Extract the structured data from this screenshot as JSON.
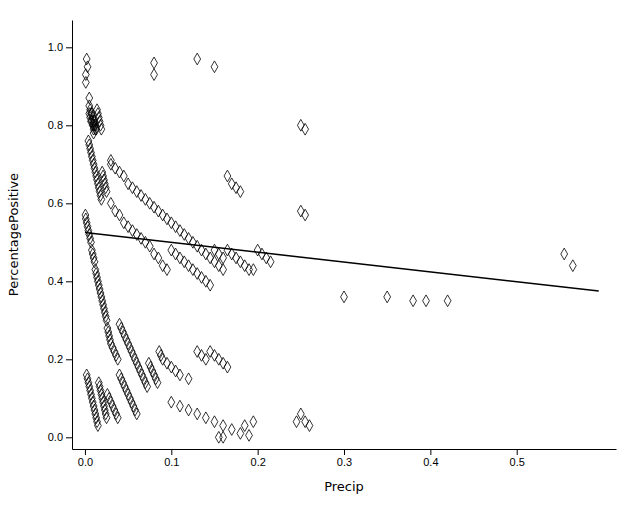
{
  "chart_data": {
    "type": "scatter",
    "xlabel": "Precip",
    "ylabel": "PercentagePositive",
    "xlim": [
      -0.015,
      0.615
    ],
    "ylim": [
      -0.03,
      1.07
    ],
    "xticks": [
      {
        "value": 0.0,
        "label": "0.0"
      },
      0.1,
      0.2,
      0.3,
      0.4,
      0.5
    ],
    "yticks": [
      {
        "value": 0.0,
        "label": "0.0"
      },
      0.2,
      0.4,
      0.6,
      0.8,
      {
        "value": 1.0,
        "label": "1.0"
      }
    ],
    "grid": false,
    "series": [
      {
        "type": "scatter",
        "marker": "diamond",
        "color": "black",
        "x": [
          0.002,
          0.003,
          0.001,
          0.001,
          0.08,
          0.08,
          0.13,
          0.15,
          0.005,
          0.005,
          0.005,
          0.006,
          0.006,
          0.007,
          0.007,
          0.008,
          0.008,
          0.009,
          0.009,
          0.01,
          0.01,
          0.01,
          0.01,
          0.011,
          0.011,
          0.012,
          0.012,
          0.013,
          0.014,
          0.015,
          0.016,
          0.017,
          0.018,
          0.019,
          0.004,
          0.005,
          0.006,
          0.007,
          0.008,
          0.009,
          0.01,
          0.011,
          0.012,
          0.013,
          0.014,
          0.015,
          0.016,
          0.017,
          0.018,
          0.019,
          0.02,
          0.021,
          0.022,
          0.023,
          0.024,
          0.025,
          0.03,
          0.03,
          0.035,
          0.04,
          0.045,
          0.05,
          0.055,
          0.06,
          0.065,
          0.07,
          0.075,
          0.08,
          0.085,
          0.09,
          0.095,
          0.1,
          0.105,
          0.11,
          0.115,
          0.12,
          0.125,
          0.13,
          0.135,
          0.14,
          0.145,
          0.15,
          0.155,
          0.16,
          0.165,
          0.17,
          0.175,
          0.18,
          0.03,
          0.035,
          0.04,
          0.045,
          0.05,
          0.055,
          0.06,
          0.065,
          0.07,
          0.075,
          0.08,
          0.085,
          0.09,
          0.095,
          0.1,
          0.105,
          0.11,
          0.115,
          0.12,
          0.125,
          0.13,
          0.135,
          0.14,
          0.145,
          0.15,
          0.155,
          0.16,
          0.165,
          0.17,
          0.175,
          0.18,
          0.185,
          0.19,
          0.195,
          0.2,
          0.205,
          0.21,
          0.215,
          0.0005,
          0.001,
          0.002,
          0.003,
          0.004,
          0.005,
          0.006,
          0.007,
          0.008,
          0.009,
          0.01,
          0.011,
          0.012,
          0.013,
          0.014,
          0.015,
          0.016,
          0.017,
          0.018,
          0.019,
          0.02,
          0.021,
          0.022,
          0.023,
          0.024,
          0.025,
          0.026,
          0.027,
          0.028,
          0.029,
          0.03,
          0.032,
          0.034,
          0.036,
          0.038,
          0.04,
          0.042,
          0.044,
          0.046,
          0.048,
          0.05,
          0.052,
          0.054,
          0.056,
          0.058,
          0.06,
          0.062,
          0.064,
          0.066,
          0.068,
          0.07,
          0.072,
          0.074,
          0.076,
          0.078,
          0.08,
          0.082,
          0.084,
          0.086,
          0.088,
          0.09,
          0.095,
          0.1,
          0.105,
          0.11,
          0.12,
          0.13,
          0.135,
          0.14,
          0.145,
          0.15,
          0.155,
          0.16,
          0.165,
          0.002,
          0.003,
          0.004,
          0.005,
          0.006,
          0.007,
          0.008,
          0.009,
          0.01,
          0.011,
          0.012,
          0.013,
          0.014,
          0.015,
          0.016,
          0.017,
          0.018,
          0.019,
          0.02,
          0.021,
          0.022,
          0.023,
          0.024,
          0.025,
          0.026,
          0.028,
          0.03,
          0.032,
          0.034,
          0.036,
          0.038,
          0.04,
          0.042,
          0.044,
          0.046,
          0.048,
          0.05,
          0.052,
          0.054,
          0.056,
          0.058,
          0.06,
          0.1,
          0.11,
          0.12,
          0.13,
          0.14,
          0.15,
          0.16,
          0.17,
          0.18,
          0.19,
          0.155,
          0.16,
          0.185,
          0.195,
          0.245,
          0.25,
          0.255,
          0.26,
          0.25,
          0.255,
          0.25,
          0.255,
          0.3,
          0.35,
          0.38,
          0.42,
          0.555,
          0.565,
          0.395
        ],
        "values": [
          0.97,
          0.95,
          0.93,
          0.91,
          0.96,
          0.93,
          0.97,
          0.95,
          0.87,
          0.85,
          0.83,
          0.84,
          0.82,
          0.83,
          0.81,
          0.83,
          0.81,
          0.82,
          0.8,
          0.81,
          0.8,
          0.79,
          0.78,
          0.81,
          0.8,
          0.8,
          0.79,
          0.79,
          0.84,
          0.83,
          0.82,
          0.81,
          0.8,
          0.79,
          0.76,
          0.75,
          0.74,
          0.73,
          0.72,
          0.71,
          0.7,
          0.69,
          0.68,
          0.67,
          0.66,
          0.65,
          0.64,
          0.63,
          0.62,
          0.61,
          0.68,
          0.67,
          0.66,
          0.65,
          0.64,
          0.63,
          0.71,
          0.7,
          0.69,
          0.68,
          0.67,
          0.65,
          0.64,
          0.63,
          0.62,
          0.61,
          0.6,
          0.59,
          0.58,
          0.57,
          0.56,
          0.55,
          0.54,
          0.53,
          0.52,
          0.51,
          0.5,
          0.49,
          0.48,
          0.47,
          0.46,
          0.45,
          0.44,
          0.43,
          0.67,
          0.65,
          0.64,
          0.63,
          0.6,
          0.58,
          0.57,
          0.55,
          0.54,
          0.53,
          0.52,
          0.51,
          0.5,
          0.49,
          0.47,
          0.46,
          0.44,
          0.43,
          0.48,
          0.47,
          0.46,
          0.45,
          0.44,
          0.43,
          0.42,
          0.41,
          0.4,
          0.39,
          0.48,
          0.47,
          0.46,
          0.48,
          0.47,
          0.46,
          0.45,
          0.44,
          0.43,
          0.43,
          0.48,
          0.47,
          0.46,
          0.45,
          0.57,
          0.56,
          0.55,
          0.54,
          0.53,
          0.52,
          0.51,
          0.5,
          0.48,
          0.47,
          0.46,
          0.45,
          0.43,
          0.42,
          0.41,
          0.4,
          0.39,
          0.38,
          0.37,
          0.36,
          0.35,
          0.34,
          0.33,
          0.32,
          0.31,
          0.3,
          0.28,
          0.27,
          0.26,
          0.25,
          0.24,
          0.23,
          0.22,
          0.21,
          0.2,
          0.29,
          0.28,
          0.27,
          0.26,
          0.25,
          0.24,
          0.23,
          0.22,
          0.21,
          0.2,
          0.19,
          0.18,
          0.17,
          0.16,
          0.15,
          0.14,
          0.13,
          0.19,
          0.18,
          0.17,
          0.16,
          0.15,
          0.14,
          0.22,
          0.21,
          0.2,
          0.19,
          0.18,
          0.17,
          0.16,
          0.15,
          0.22,
          0.21,
          0.2,
          0.22,
          0.21,
          0.2,
          0.19,
          0.18,
          0.16,
          0.15,
          0.14,
          0.13,
          0.12,
          0.11,
          0.1,
          0.09,
          0.08,
          0.07,
          0.06,
          0.05,
          0.04,
          0.03,
          0.14,
          0.13,
          0.12,
          0.11,
          0.1,
          0.09,
          0.08,
          0.07,
          0.06,
          0.05,
          0.11,
          0.1,
          0.09,
          0.08,
          0.07,
          0.06,
          0.05,
          0.16,
          0.15,
          0.14,
          0.13,
          0.12,
          0.11,
          0.1,
          0.09,
          0.08,
          0.07,
          0.06,
          0.09,
          0.08,
          0.07,
          0.06,
          0.05,
          0.04,
          0.03,
          0.02,
          0.01,
          0.005,
          0,
          0,
          0.03,
          0.04,
          0.04,
          0.06,
          0.04,
          0.03,
          0.58,
          0.57,
          0.8,
          0.79,
          0.36,
          0.36,
          0.35,
          0.35,
          0.47,
          0.44,
          0.35
        ]
      },
      {
        "type": "line",
        "color": "black",
        "x": [
          0.0,
          0.595
        ],
        "values": [
          0.525,
          0.375
        ]
      }
    ]
  }
}
